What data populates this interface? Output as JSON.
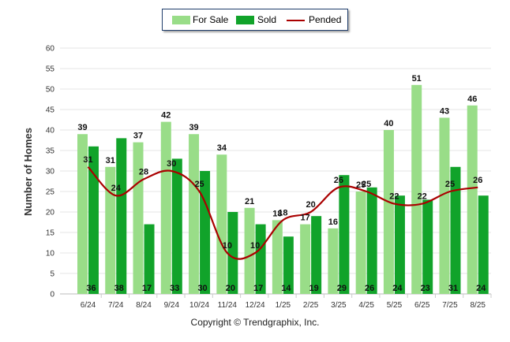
{
  "chart_data": {
    "type": "bar",
    "ylabel": "Number of Homes",
    "ylim": [
      0,
      60
    ],
    "yticks": [
      0,
      5,
      10,
      15,
      20,
      25,
      30,
      35,
      40,
      45,
      50,
      55,
      60
    ],
    "grid": true,
    "legend_position": "top-center",
    "categories": [
      "6/24",
      "7/24",
      "8/24",
      "9/24",
      "10/24",
      "11/24",
      "12/24",
      "1/25",
      "2/25",
      "3/25",
      "4/25",
      "5/25",
      "6/25",
      "7/25",
      "8/25"
    ],
    "series": [
      {
        "name": "For Sale",
        "type": "bar",
        "color": "#99dd88",
        "values": [
          39,
          31,
          37,
          42,
          39,
          34,
          21,
          18,
          17,
          16,
          25,
          40,
          51,
          43,
          46
        ]
      },
      {
        "name": "Sold",
        "type": "bar",
        "color": "#11a32a",
        "values": [
          36,
          38,
          17,
          33,
          30,
          20,
          17,
          14,
          19,
          29,
          26,
          24,
          23,
          31,
          24
        ]
      },
      {
        "name": "Pended",
        "type": "line",
        "color": "#aa0000",
        "values": [
          31,
          24,
          28,
          30,
          25,
          10,
          10,
          18,
          20,
          26,
          25,
          22,
          22,
          25,
          26
        ]
      }
    ]
  },
  "footer": "Copyright © Trendgraphix, Inc."
}
